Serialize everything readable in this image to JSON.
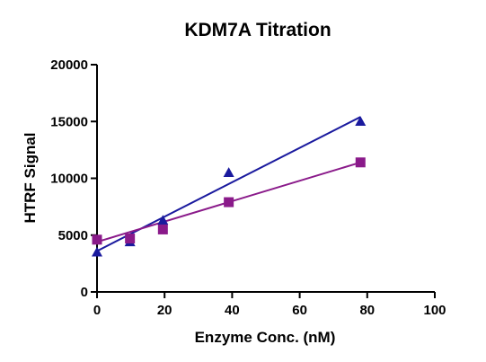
{
  "chart_data": {
    "type": "scatter",
    "title": "KDM7A Titration",
    "xlabel": "Enzyme Conc. (nM)",
    "ylabel": "HTRF Signal",
    "xlim": [
      0,
      100
    ],
    "ylim": [
      0,
      20000
    ],
    "xticks": [
      0,
      20,
      40,
      60,
      80,
      100
    ],
    "yticks": [
      0,
      5000,
      10000,
      15000,
      20000
    ],
    "grid": false,
    "legend": "none",
    "series": [
      {
        "marker": "triangle",
        "color": "#1a1a9e",
        "x": [
          0,
          9.75,
          19.5,
          39,
          78
        ],
        "y": [
          3500,
          4400,
          6300,
          10500,
          15000
        ],
        "fit": {
          "type": "linear",
          "from": [
            0,
            3600
          ],
          "to": [
            78,
            15400
          ]
        }
      },
      {
        "marker": "square",
        "color": "#8a1a8a",
        "x": [
          0,
          9.75,
          19.5,
          39,
          78
        ],
        "y": [
          4600,
          4700,
          5500,
          7900,
          11400
        ],
        "fit": {
          "type": "linear",
          "from": [
            0,
            4400
          ],
          "to": [
            78,
            11400
          ]
        }
      }
    ]
  }
}
